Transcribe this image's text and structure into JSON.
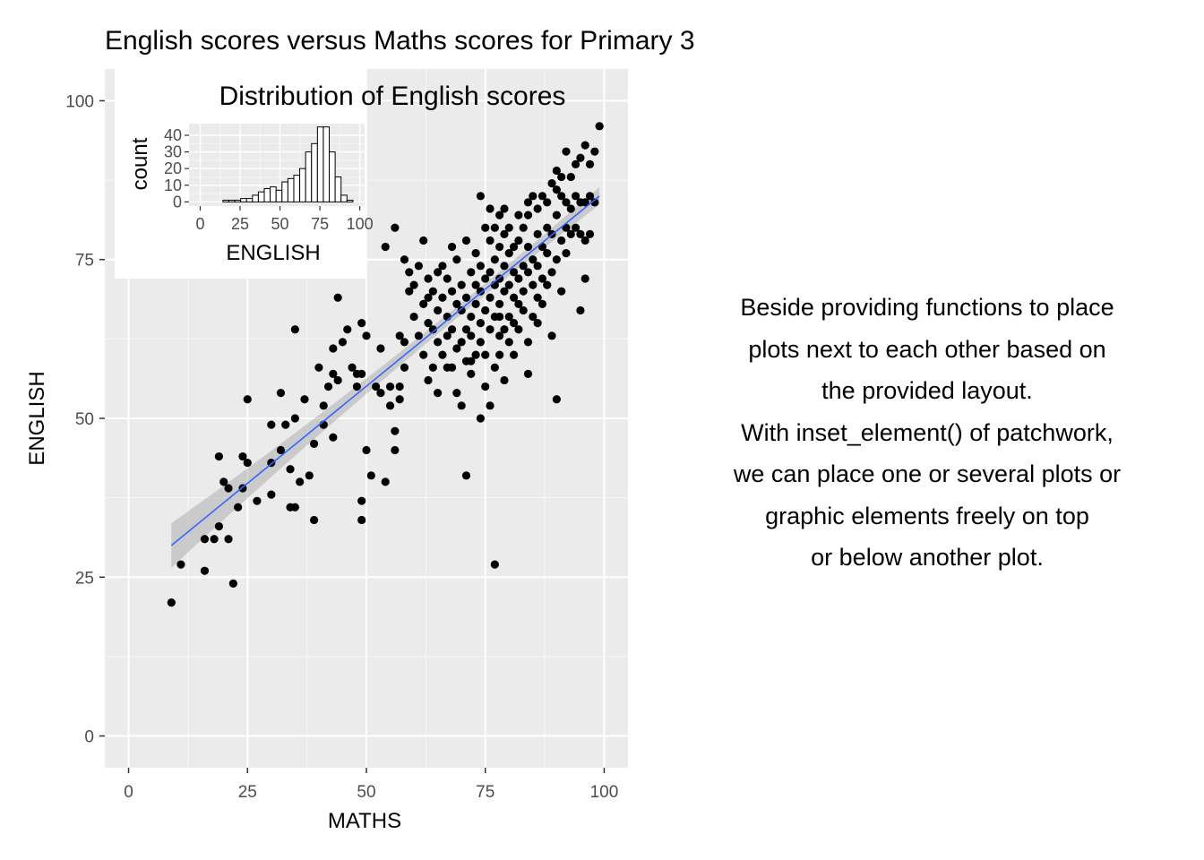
{
  "chart_data": [
    {
      "type": "scatter",
      "title": "English scores versus Maths scores for Primary 3",
      "xlabel": "MATHS",
      "ylabel": "ENGLISH",
      "xlim": [
        -5,
        105
      ],
      "ylim": [
        -5,
        105
      ],
      "xticks": [
        0,
        25,
        50,
        75,
        100
      ],
      "yticks": [
        0,
        25,
        50,
        75,
        100
      ],
      "grid": true,
      "panel_background": "#ebebeb",
      "point_color": "#000000",
      "trend_line": {
        "method": "linear",
        "color": "#3366ff",
        "x": [
          9,
          99
        ],
        "y": [
          30,
          85
        ],
        "se_band": true
      },
      "points": [
        [
          9,
          21
        ],
        [
          11,
          27
        ],
        [
          16,
          26
        ],
        [
          16,
          31
        ],
        [
          18,
          31
        ],
        [
          19,
          33
        ],
        [
          19,
          44
        ],
        [
          20,
          40
        ],
        [
          21,
          31
        ],
        [
          21,
          39
        ],
        [
          22,
          24
        ],
        [
          23,
          36
        ],
        [
          24,
          39
        ],
        [
          24,
          44
        ],
        [
          25,
          43
        ],
        [
          25,
          53
        ],
        [
          30,
          38
        ],
        [
          30,
          43
        ],
        [
          30,
          49
        ],
        [
          32,
          45
        ],
        [
          32,
          54
        ],
        [
          33,
          49
        ],
        [
          34,
          36
        ],
        [
          34,
          42
        ],
        [
          35,
          36
        ],
        [
          35,
          50
        ],
        [
          35,
          64
        ],
        [
          36,
          40
        ],
        [
          37,
          53
        ],
        [
          38,
          41
        ],
        [
          39,
          34
        ],
        [
          40,
          58
        ],
        [
          41,
          49
        ],
        [
          41,
          52
        ],
        [
          42,
          55
        ],
        [
          43,
          57
        ],
        [
          43,
          61
        ],
        [
          44,
          56
        ],
        [
          44,
          69
        ],
        [
          45,
          62
        ],
        [
          46,
          64
        ],
        [
          47,
          58
        ],
        [
          48,
          55
        ],
        [
          48,
          57
        ],
        [
          49,
          34
        ],
        [
          49,
          37
        ],
        [
          49,
          57
        ],
        [
          49,
          65
        ],
        [
          50,
          45
        ],
        [
          50,
          63
        ],
        [
          51,
          41
        ],
        [
          52,
          55
        ],
        [
          53,
          54
        ],
        [
          54,
          40
        ],
        [
          54,
          77
        ],
        [
          55,
          52
        ],
        [
          55,
          55
        ],
        [
          56,
          45
        ],
        [
          56,
          48
        ],
        [
          56,
          80
        ],
        [
          57,
          53
        ],
        [
          57,
          55
        ],
        [
          58,
          58
        ],
        [
          58,
          62
        ],
        [
          58,
          75
        ],
        [
          59,
          70
        ],
        [
          59,
          73
        ],
        [
          60,
          66
        ],
        [
          60,
          71
        ],
        [
          61,
          63
        ],
        [
          61,
          74
        ],
        [
          62,
          60
        ],
        [
          62,
          68
        ],
        [
          62,
          78
        ],
        [
          63,
          56
        ],
        [
          63,
          65
        ],
        [
          63,
          72
        ],
        [
          64,
          58
        ],
        [
          64,
          64
        ],
        [
          64,
          70
        ],
        [
          65,
          54
        ],
        [
          65,
          62
        ],
        [
          65,
          67
        ],
        [
          65,
          73
        ],
        [
          66,
          60
        ],
        [
          66,
          69
        ],
        [
          66,
          74
        ],
        [
          67,
          63
        ],
        [
          67,
          66
        ],
        [
          67,
          72
        ],
        [
          68,
          58
        ],
        [
          68,
          64
        ],
        [
          68,
          70
        ],
        [
          68,
          77
        ],
        [
          69,
          54
        ],
        [
          69,
          61
        ],
        [
          69,
          68
        ],
        [
          69,
          75
        ],
        [
          70,
          52
        ],
        [
          70,
          62
        ],
        [
          70,
          67
        ],
        [
          70,
          71
        ],
        [
          71,
          41
        ],
        [
          71,
          59
        ],
        [
          71,
          64
        ],
        [
          71,
          69
        ],
        [
          71,
          78
        ],
        [
          72,
          57
        ],
        [
          72,
          63
        ],
        [
          72,
          66
        ],
        [
          72,
          73
        ],
        [
          73,
          60
        ],
        [
          73,
          68
        ],
        [
          73,
          71
        ],
        [
          73,
          76
        ],
        [
          74,
          50
        ],
        [
          74,
          62
        ],
        [
          74,
          65
        ],
        [
          74,
          70
        ],
        [
          74,
          74
        ],
        [
          74,
          85
        ],
        [
          75,
          55
        ],
        [
          75,
          60
        ],
        [
          75,
          67
        ],
        [
          75,
          72
        ],
        [
          75,
          80
        ],
        [
          76,
          52
        ],
        [
          76,
          64
        ],
        [
          76,
          69
        ],
        [
          76,
          73
        ],
        [
          76,
          78
        ],
        [
          76,
          83
        ],
        [
          77,
          27
        ],
        [
          77,
          58
        ],
        [
          77,
          66
        ],
        [
          77,
          71
        ],
        [
          77,
          75
        ],
        [
          77,
          80
        ],
        [
          78,
          60
        ],
        [
          78,
          63
        ],
        [
          78,
          68
        ],
        [
          78,
          72
        ],
        [
          78,
          77
        ],
        [
          78,
          82
        ],
        [
          79,
          56
        ],
        [
          79,
          64
        ],
        [
          79,
          70
        ],
        [
          79,
          74
        ],
        [
          79,
          79
        ],
        [
          79,
          83
        ],
        [
          80,
          62
        ],
        [
          80,
          66
        ],
        [
          80,
          71
        ],
        [
          80,
          76
        ],
        [
          80,
          80
        ],
        [
          81,
          60
        ],
        [
          81,
          65
        ],
        [
          81,
          69
        ],
        [
          81,
          73
        ],
        [
          81,
          77
        ],
        [
          82,
          64
        ],
        [
          82,
          68
        ],
        [
          82,
          72
        ],
        [
          82,
          78
        ],
        [
          82,
          82
        ],
        [
          83,
          67
        ],
        [
          83,
          70
        ],
        [
          83,
          74
        ],
        [
          83,
          80
        ],
        [
          84,
          57
        ],
        [
          84,
          62
        ],
        [
          84,
          73
        ],
        [
          84,
          77
        ],
        [
          84,
          84
        ],
        [
          85,
          66
        ],
        [
          85,
          71
        ],
        [
          85,
          75
        ],
        [
          85,
          85
        ],
        [
          86,
          65
        ],
        [
          86,
          69
        ],
        [
          86,
          74
        ],
        [
          86,
          79
        ],
        [
          86,
          83
        ],
        [
          87,
          68
        ],
        [
          87,
          72
        ],
        [
          87,
          77
        ],
        [
          87,
          85
        ],
        [
          88,
          71
        ],
        [
          88,
          76
        ],
        [
          88,
          80
        ],
        [
          88,
          84
        ],
        [
          89,
          63
        ],
        [
          89,
          73
        ],
        [
          89,
          79
        ],
        [
          89,
          87
        ],
        [
          90,
          53
        ],
        [
          90,
          75
        ],
        [
          90,
          82
        ],
        [
          90,
          86
        ],
        [
          90,
          89
        ],
        [
          91,
          70
        ],
        [
          91,
          78
        ],
        [
          91,
          85
        ],
        [
          91,
          88
        ],
        [
          92,
          76
        ],
        [
          92,
          80
        ],
        [
          92,
          84
        ],
        [
          92,
          92
        ],
        [
          93,
          79
        ],
        [
          93,
          83
        ],
        [
          93,
          88
        ],
        [
          94,
          80
        ],
        [
          94,
          85
        ],
        [
          94,
          90
        ],
        [
          95,
          67
        ],
        [
          95,
          79
        ],
        [
          95,
          84
        ],
        [
          95,
          91
        ],
        [
          96,
          72
        ],
        [
          96,
          78
        ],
        [
          96,
          84
        ],
        [
          96,
          93
        ],
        [
          97,
          79
        ],
        [
          97,
          85
        ],
        [
          97,
          90
        ],
        [
          98,
          84
        ],
        [
          98,
          92
        ],
        [
          99,
          96
        ],
        [
          84,
          82
        ],
        [
          78,
          66
        ],
        [
          72,
          59
        ],
        [
          67,
          58
        ],
        [
          63,
          69
        ],
        [
          57,
          63
        ],
        [
          53,
          61
        ],
        [
          43,
          47
        ],
        [
          39,
          46
        ],
        [
          27,
          37
        ]
      ]
    },
    {
      "type": "bar",
      "title": "Distribution of English scores",
      "xlabel": "ENGLISH",
      "ylabel": "count",
      "xlim": [
        -7,
        103
      ],
      "ylim": [
        -2.5,
        47
      ],
      "xticks": [
        0,
        25,
        50,
        75,
        100
      ],
      "yticks": [
        0,
        10,
        20,
        30,
        40
      ],
      "bin_width": 3.7,
      "bin_centers": [
        16.1,
        19.8,
        23.5,
        27.2,
        30.9,
        34.6,
        38.3,
        42.0,
        45.7,
        49.4,
        53.1,
        56.8,
        60.5,
        64.2,
        67.9,
        71.6,
        75.3,
        79.0,
        82.7,
        86.4,
        90.1,
        93.8
      ],
      "counts": [
        1,
        1,
        1,
        2,
        2,
        4,
        6,
        8,
        9,
        7,
        12,
        14,
        16,
        20,
        30,
        35,
        45,
        45,
        30,
        15,
        4,
        1
      ]
    }
  ],
  "caption_lines": [
    "Beside providing functions to place",
    "plots next to each other based on",
    "the provided layout.",
    "With inset_element() of patchwork,",
    "we can place one or several plots or",
    "graphic elements freely on top",
    "or below another plot."
  ]
}
